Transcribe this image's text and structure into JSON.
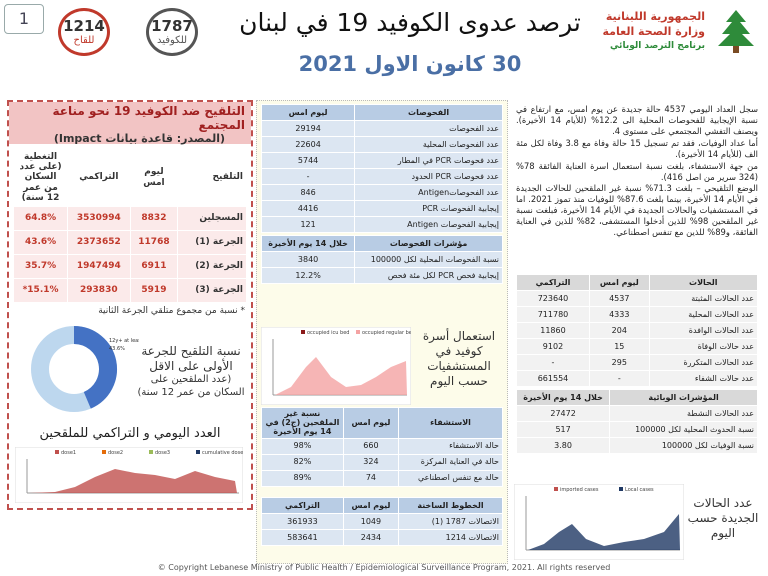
{
  "page_number": "1",
  "hotline_badges": [
    {
      "number": "1214",
      "label": "للقاح"
    },
    {
      "number": "1787",
      "label": "للكوفيد"
    }
  ],
  "header": {
    "title": "ترصد عدوى الكوفيد 19 في لبنان",
    "date": "30 كانون الاول 2021",
    "logo_lines": [
      "الجمهورية اللبنانية",
      "وزارة الصحة العامة",
      "برنامج الترصد الوبائي"
    ]
  },
  "vaccination": {
    "title": "التلقيح ضد الكوفيد 19 نحو مناعة المجتمع",
    "source": "(المصدر: قاعدة بيانات Impact)",
    "table": {
      "rows": [
        [
          "التلقيح",
          "ليوم امس",
          "التراكمي",
          "التغطية (على عدد السكان من عمر 12 سنة)"
        ],
        [
          "المسجلين",
          "8832",
          "3530994",
          "64.8%"
        ],
        [
          "الجرعة (1)",
          "11768",
          "2373652",
          "43.6%"
        ],
        [
          "الجرعة (2)",
          "6911",
          "1947494",
          "35.7%"
        ],
        [
          "الجرعة (3)",
          "5919",
          "293830",
          "15.1%*"
        ]
      ]
    },
    "note": "* نسبة من مجموع متلقي الجرعة الثانية",
    "donut": {
      "type": "pie",
      "caption": "نسبة التلقيح للجرعة الأولى على الاقل",
      "caption_note": "(عدد الملقحين على السكان من عمر 12 سنة)",
      "chart_label": "12y+ at least 1 dose",
      "value": 43.6,
      "value_label": "43.6%",
      "color": "#4472c4"
    },
    "daily_chart": {
      "title": "العدد اليومي و التراكمي للملقحين",
      "legend": [
        "dose1",
        "dose2",
        "dose3",
        "cumulative dose"
      ]
    }
  },
  "tests": {
    "table": {
      "rows": [
        [
          "الفحوصات",
          "ليوم امس"
        ],
        [
          "عدد الفحوصات",
          "29194"
        ],
        [
          "عدد الفحوصات المحلية",
          "22604"
        ],
        [
          "عدد فحوصات PCR في المطار",
          "5744"
        ],
        [
          "عدد فحوصات PCR الحدود",
          "-"
        ],
        [
          "عدد الفحوصاتAntigen",
          "846"
        ],
        [
          "إيجابية الفحوصات PCR",
          "4416"
        ],
        [
          "إيجابية الفحوصات Antigen",
          "121"
        ]
      ]
    },
    "indicators": {
      "rows": [
        [
          "مؤشرات الفحوصات",
          "خلال 14 يوم الأخيرة"
        ],
        [
          "نسبة الفحوصات المحلية لكل 100000",
          "3840"
        ],
        [
          "إيجابية فحص PCR لكل مئة فحص",
          "12.2%"
        ]
      ]
    }
  },
  "hospital_chart": {
    "title": "استعمال أسرة كوفيد في المستشفيات حسب اليوم",
    "legend": [
      "occupied icu bed",
      "occupied regular bed"
    ]
  },
  "hospitalization": {
    "rows": [
      [
        "الاستشفاء",
        "ليوم امس",
        "نسبة غير الملقحين (ج2) في 14 يوم الأخيرة"
      ],
      [
        "حالة الاستشفاء",
        "660",
        "98%"
      ],
      [
        "حالة في العناية المركزة",
        "324",
        "82%"
      ],
      [
        "حالة مع تنفس اصطناعي",
        "74",
        "89%"
      ]
    ]
  },
  "hotlines": {
    "rows": [
      [
        "الخطوط الساخنة",
        "ليوم امس",
        "التراكمي"
      ],
      [
        "الاتصالات 1787 (1)",
        "1049",
        "361933"
      ],
      [
        "الاتصالات 1214",
        "2434",
        "583641"
      ]
    ]
  },
  "summary": [
    "سجل العداد اليومي 4537 حالة جديدة عن يوم امس، مع ارتفاع في نسبة الإيجابية للفحوصات المحلية الى 12.2% (للأيام 14 الأخيرة). ويصنف التفشي المجتمعي على مستوى 4.",
    "أما عداد الوفيات، فقد تم تسجيل 15 حالة وفاة مع 3.8 وفاة لكل مئة الف (للأيام 14 الأخيرة).",
    "من جهة الاستشفاء، بلغت نسبة استعمال اسرة العناية الفائقة 78% (324 سرير من اصل 416).",
    "الوضع التلقيحي – بلغت 71.3% نسبة غير الملقحين للحالات الجديدة في الأيام 14 الأخيرة، بينما بلغت 87.6% للوفيات منذ تموز 2021. اما في المستشفيات والحالات الجديدة في الأيام 14 الأخيرة، فبلغت نسبة غير الملقحين 98% للذين أدخلوا المستشفى، 82% للذين في العناية الفائقة، و89% للذين مع تنفس اصطناعي."
  ],
  "cases": {
    "rows": [
      [
        "الحالات",
        "ليوم امس",
        "التراكمي"
      ],
      [
        "عدد الحالات المثبتة",
        "4537",
        "723640"
      ],
      [
        "عدد الحالات المحلية",
        "4333",
        "711780"
      ],
      [
        "عدد الحالات الوافدة",
        "204",
        "11860"
      ],
      [
        "عدد حالات الوفاة",
        "15",
        "9102"
      ],
      [
        "عدد الحالات المتكررة",
        "295",
        "-"
      ],
      [
        "عدد حالات الشفاء",
        "-",
        "661554"
      ]
    ]
  },
  "epi_indicators": {
    "rows": [
      [
        "المؤشرات الوبائية",
        "خلال 14 يوم الأخيرة"
      ],
      [
        "عدد الحالات النشطة",
        "27472"
      ],
      [
        "نسبة الحدوث المحلية لكل 100000",
        "517"
      ],
      [
        "نسبة الوفيات لكل 100000",
        "3.80"
      ]
    ]
  },
  "cases_chart": {
    "title": "عدد الحالات الجديدة حسب اليوم",
    "legend": [
      "imported cases",
      "Local cases"
    ]
  },
  "footer": "© Copyright Lebanese Ministry of Public Health / Epidemiological Surveillance Program, 2021. All rights reserved"
}
